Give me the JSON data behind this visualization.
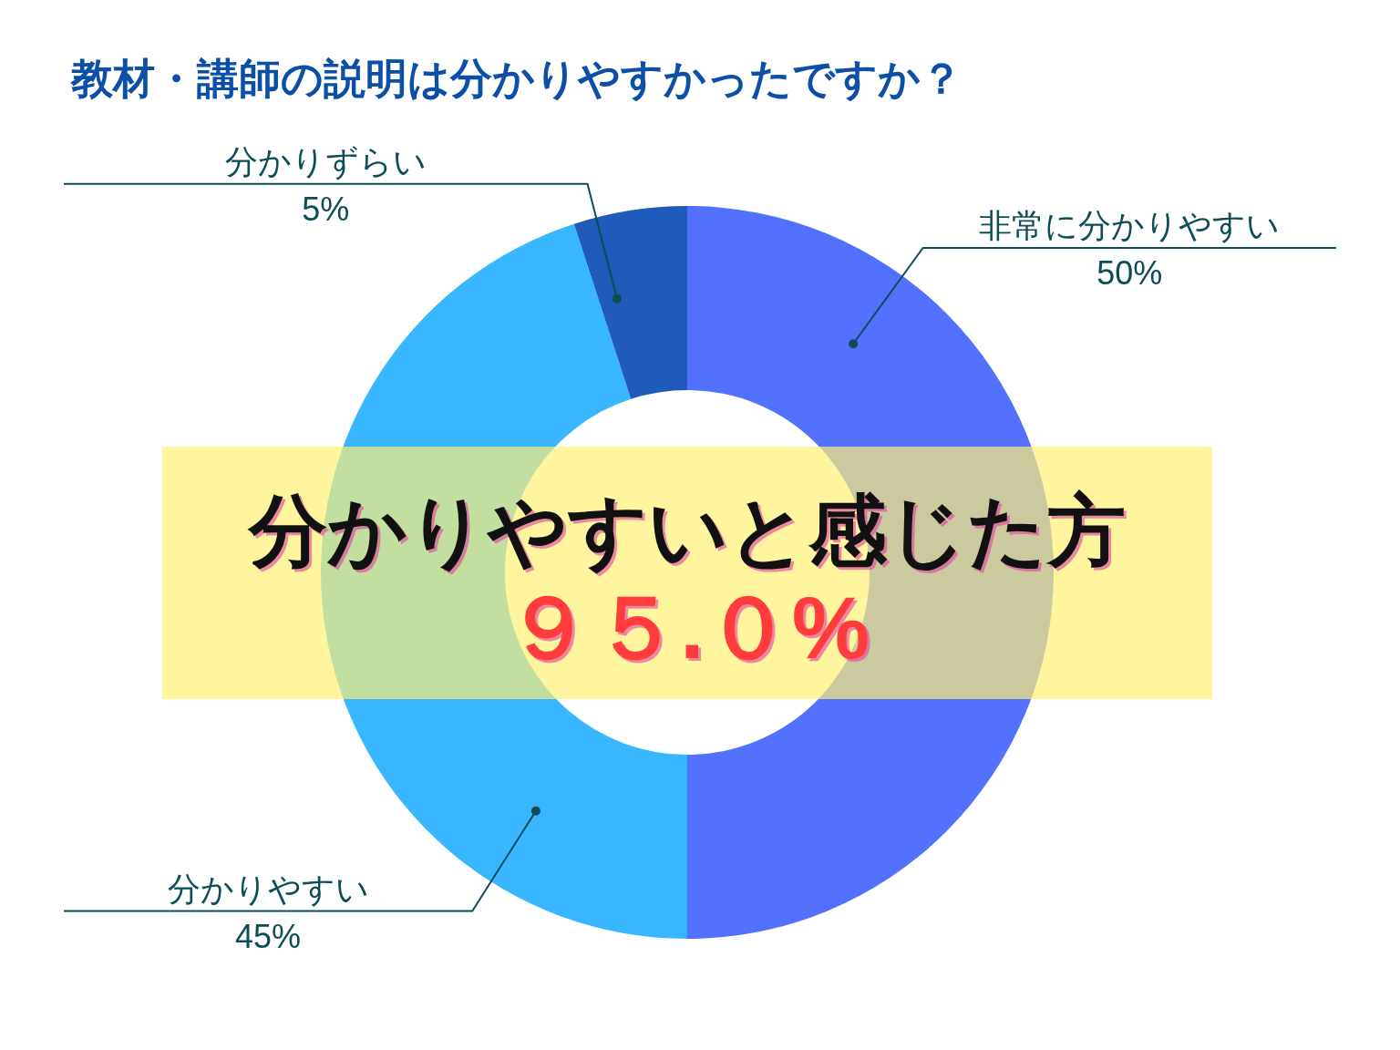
{
  "chart_data": {
    "type": "donut",
    "title": "教材・講師の説明は分かりやすかったですか？",
    "categories": [
      "非常に分かりやすい",
      "分かりやすい",
      "分かりずらい"
    ],
    "values": [
      50,
      45,
      5
    ],
    "colors": [
      "#5271ff",
      "#38b6ff",
      "#1f5bb8"
    ],
    "value_labels": [
      "50%",
      "45%",
      "5%"
    ],
    "annotations": [
      "分かりやすいと感じた方",
      "９５.０%"
    ]
  }
}
